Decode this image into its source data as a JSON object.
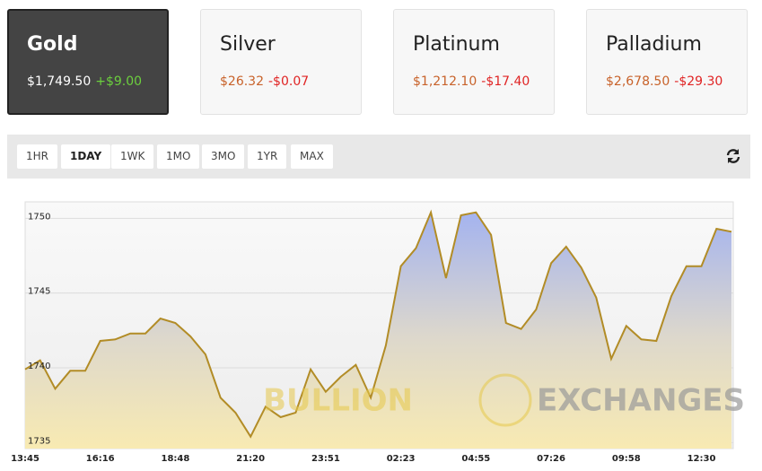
{
  "cards": [
    {
      "name": "Gold",
      "price": "$1,749.50",
      "change": "+$9.00"
    },
    {
      "name": "Silver",
      "price": "$26.32",
      "change": "-$0.07"
    },
    {
      "name": "Platinum",
      "price": "$1,212.10",
      "change": "-$17.40"
    },
    {
      "name": "Palladium",
      "price": "$2,678.50",
      "change": "-$29.30"
    }
  ],
  "ranges": [
    "1HR",
    "1DAY",
    "1WK",
    "1MO",
    "3MO",
    "1YR",
    "MAX"
  ],
  "watermark": {
    "left": "BULLION",
    "right": "EXCHANGES"
  },
  "chart_data": {
    "type": "area",
    "color": "#b28c26",
    "categories": [
      "13:45",
      null,
      null,
      null,
      null,
      "16:16",
      null,
      null,
      null,
      null,
      "18:48",
      null,
      null,
      null,
      null,
      "21:20",
      null,
      null,
      null,
      null,
      "23:51",
      null,
      null,
      null,
      null,
      "02:23",
      null,
      null,
      null,
      null,
      "04:55",
      null,
      null,
      null,
      null,
      "07:26",
      null,
      null,
      null,
      null,
      "09:58",
      null,
      null,
      null,
      null,
      "12:30",
      null,
      null
    ],
    "values": [
      1739.9,
      1740.5,
      1738.6,
      1739.8,
      1739.8,
      1741.8,
      1741.9,
      1742.3,
      1742.3,
      1743.3,
      1743.0,
      1742.1,
      1740.9,
      1738.0,
      1737.0,
      1735.4,
      1737.4,
      1736.7,
      1737.0,
      1739.9,
      1738.4,
      1739.4,
      1740.2,
      1738.0,
      1741.5,
      1746.8,
      1748.0,
      1750.4,
      1746.0,
      1750.2,
      1750.4,
      1748.9,
      1743.0,
      1742.6,
      1743.9,
      1747.0,
      1748.1,
      1746.7,
      1744.7,
      1740.6,
      1742.8,
      1741.9,
      1741.8,
      1744.8,
      1746.8,
      1746.8,
      1749.3,
      1749.1
    ],
    "ylim": [
      1734.6,
      1751.1
    ],
    "yticks": [
      1735,
      1740,
      1745,
      1750
    ],
    "grid": true
  }
}
